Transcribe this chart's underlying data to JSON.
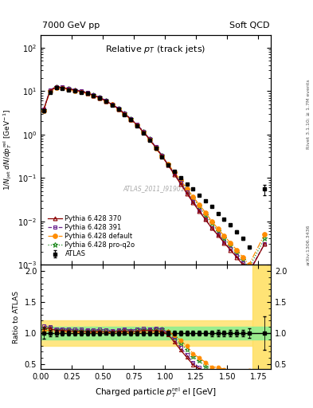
{
  "title_left": "7000 GeV pp",
  "title_right": "Soft QCD",
  "plot_title": "Relative $p_T$ (track jets)",
  "ylabel_main": "$1/N_{\\mathrm{jet}}\\ dN/dp^{\\mathrm{rel}}_T\\ [\\mathrm{GeV}^{-1}]$",
  "ylabel_ratio": "Ratio to ATLAS",
  "xlabel": "Charged particle $p^{\\mathrm{rel}}_T$ el [GeV]",
  "watermark": "ATLAS_2011_I919017",
  "right_label_top": "Rivet 3.1.10; ≥ 1.7M events",
  "right_label_bottom": "arXiv:1306.3436",
  "atlas_x": [
    0.025,
    0.075,
    0.125,
    0.175,
    0.225,
    0.275,
    0.325,
    0.375,
    0.425,
    0.475,
    0.525,
    0.575,
    0.625,
    0.675,
    0.725,
    0.775,
    0.825,
    0.875,
    0.925,
    0.975,
    1.025,
    1.075,
    1.125,
    1.175,
    1.225,
    1.275,
    1.325,
    1.375,
    1.425,
    1.475,
    1.525,
    1.575,
    1.625,
    1.675,
    1.8
  ],
  "atlas_y": [
    3.5,
    9.5,
    12.0,
    11.5,
    10.8,
    10.2,
    9.5,
    8.8,
    7.8,
    6.8,
    5.8,
    4.8,
    3.8,
    2.9,
    2.2,
    1.6,
    1.1,
    0.75,
    0.48,
    0.31,
    0.2,
    0.14,
    0.1,
    0.072,
    0.055,
    0.04,
    0.03,
    0.022,
    0.015,
    0.011,
    0.0082,
    0.0058,
    0.004,
    0.0025,
    0.055
  ],
  "atlas_yerr": [
    0.3,
    0.5,
    0.6,
    0.5,
    0.4,
    0.4,
    0.35,
    0.3,
    0.25,
    0.22,
    0.18,
    0.15,
    0.12,
    0.09,
    0.07,
    0.05,
    0.035,
    0.024,
    0.016,
    0.01,
    0.007,
    0.005,
    0.004,
    0.003,
    0.002,
    0.0015,
    0.001,
    0.001,
    0.0007,
    0.0005,
    0.0004,
    0.0003,
    0.0002,
    0.0002,
    0.015
  ],
  "py370_y": [
    3.8,
    10.2,
    12.5,
    12.0,
    11.2,
    10.5,
    9.8,
    9.0,
    8.0,
    7.0,
    5.9,
    4.9,
    3.9,
    3.0,
    2.25,
    1.65,
    1.15,
    0.78,
    0.5,
    0.32,
    0.195,
    0.12,
    0.073,
    0.044,
    0.027,
    0.017,
    0.011,
    0.007,
    0.0048,
    0.0032,
    0.0022,
    0.0015,
    0.001,
    0.00065,
    0.003
  ],
  "py391_y": [
    3.9,
    10.5,
    12.8,
    12.3,
    11.5,
    10.8,
    10.1,
    9.3,
    8.2,
    7.2,
    6.1,
    5.0,
    4.0,
    3.1,
    2.3,
    1.7,
    1.18,
    0.8,
    0.52,
    0.33,
    0.2,
    0.125,
    0.077,
    0.047,
    0.029,
    0.018,
    0.011,
    0.007,
    0.005,
    0.0033,
    0.0023,
    0.0016,
    0.0011,
    0.0007,
    0.003
  ],
  "pydef_y": [
    3.6,
    10.0,
    12.2,
    11.8,
    11.0,
    10.3,
    9.6,
    8.9,
    7.9,
    6.9,
    5.85,
    4.85,
    3.85,
    2.95,
    2.2,
    1.62,
    1.12,
    0.76,
    0.49,
    0.315,
    0.205,
    0.135,
    0.088,
    0.057,
    0.037,
    0.024,
    0.016,
    0.01,
    0.0068,
    0.0046,
    0.0032,
    0.0022,
    0.0015,
    0.001,
    0.005
  ],
  "pyproq2o_y": [
    3.7,
    10.3,
    12.6,
    12.1,
    11.3,
    10.6,
    9.9,
    9.1,
    8.1,
    7.1,
    6.0,
    4.95,
    3.95,
    3.05,
    2.28,
    1.68,
    1.16,
    0.79,
    0.51,
    0.33,
    0.205,
    0.13,
    0.083,
    0.053,
    0.034,
    0.022,
    0.014,
    0.009,
    0.006,
    0.004,
    0.0028,
    0.0019,
    0.0013,
    0.00085,
    0.004
  ],
  "color_atlas": "#000000",
  "color_py370": "#8B0000",
  "color_py391": "#6B238E",
  "color_pydef": "#FF8C00",
  "color_pyproq2o": "#228B22",
  "ylim_main": [
    0.001,
    200
  ],
  "ylim_ratio": [
    0.42,
    2.1
  ],
  "xlim": [
    0.0,
    1.85
  ],
  "green_band_y1": 0.9,
  "green_band_y2": 1.1,
  "yellow_band_y1": 0.8,
  "yellow_band_y2": 1.2,
  "last_bin_x_start": 1.7
}
